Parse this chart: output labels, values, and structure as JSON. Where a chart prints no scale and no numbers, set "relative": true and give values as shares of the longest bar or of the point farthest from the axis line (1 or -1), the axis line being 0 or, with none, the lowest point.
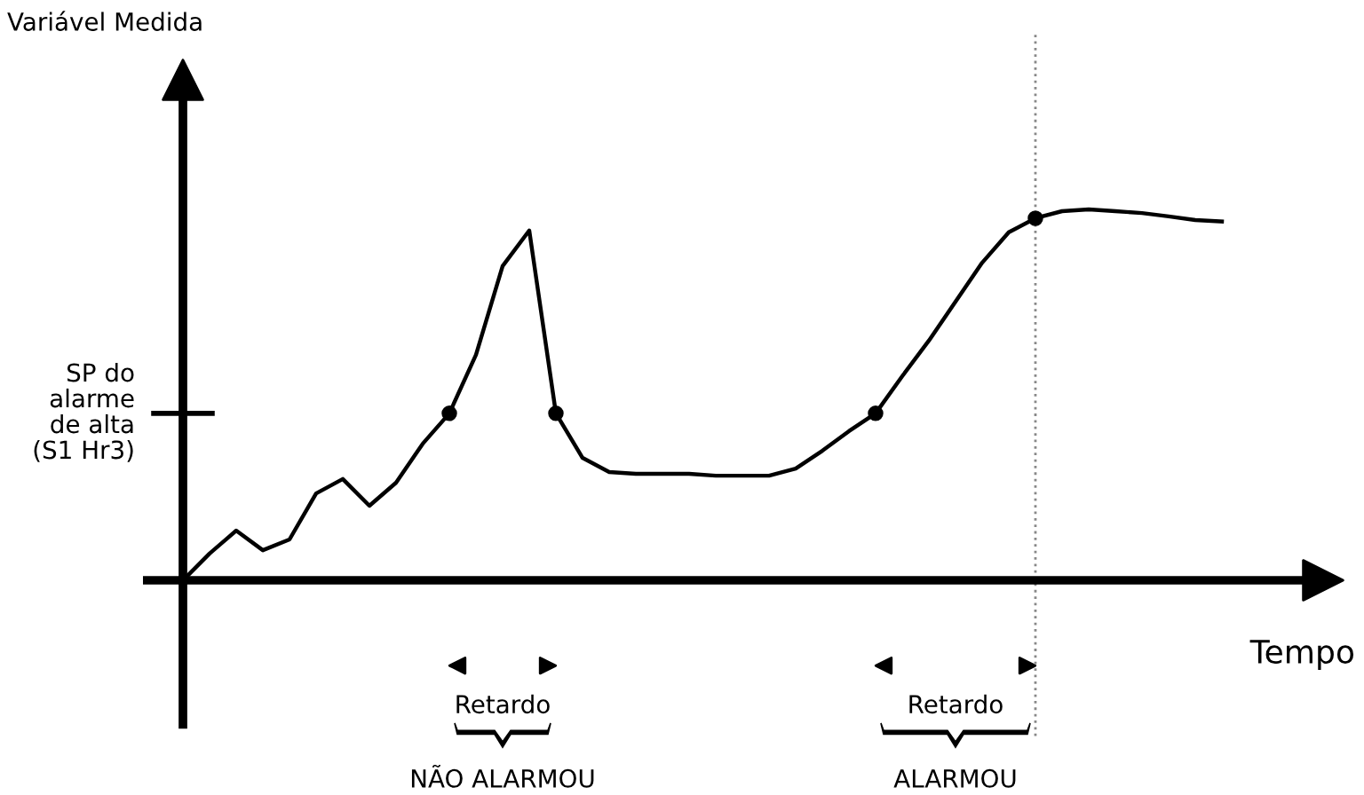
{
  "chart_data": {
    "type": "line",
    "relative": true,
    "xlabel": "Tempo",
    "categories": [
      null,
      null,
      null,
      null,
      null,
      null,
      null,
      null,
      null,
      null,
      null,
      null,
      null,
      null,
      null,
      null,
      null,
      null,
      null,
      null,
      null,
      null,
      null,
      null,
      null,
      null,
      null,
      null,
      null,
      null,
      null,
      null,
      null,
      null,
      null,
      null,
      null,
      null,
      null,
      null
    ],
    "series": [
      {
        "color": "#000000",
        "values": [
          0,
          0.072,
          0.134,
          0.081,
          0.11,
          0.234,
          0.273,
          0.201,
          0.263,
          0.368,
          0.45,
          0.608,
          0.847,
          0.943,
          0.45,
          0.33,
          0.292,
          0.287,
          0.287,
          0.287,
          0.282,
          0.282,
          0.282,
          0.301,
          0.349,
          0.402,
          0.45,
          0.55,
          0.646,
          0.751,
          0.856,
          0.938,
          0.976,
          0.995,
          1,
          0.995,
          0.99,
          0.981,
          0.971,
          0.967
        ]
      }
    ],
    "ref_lines": [
      {
        "axis": "y",
        "value": 0.45,
        "label": "SP do\nalarme\nde alta\n(S1 Hr3)"
      }
    ],
    "annotations": [
      "Variável Medida",
      "Retardo",
      "NÃO ALARMOU",
      "Retardo",
      "ALARMOU"
    ]
  }
}
